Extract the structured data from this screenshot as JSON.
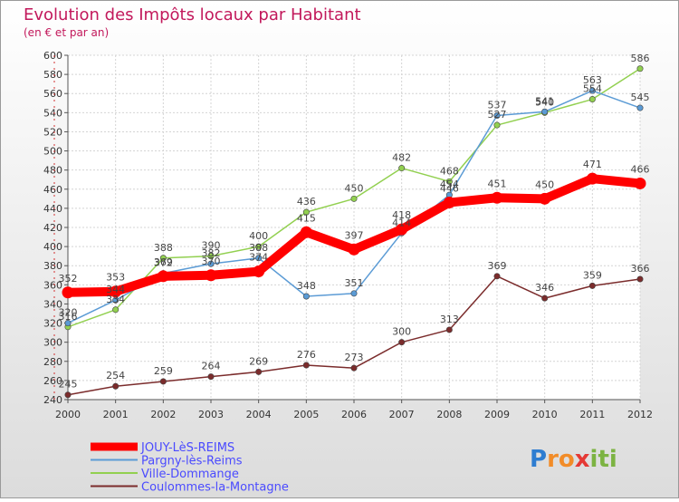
{
  "chart_data": {
    "type": "line",
    "title": "Evolution des Impôts locaux par Habitant",
    "subtitle": "(en € et par an)",
    "x": [
      "2000",
      "2001",
      "2002",
      "2003",
      "2004",
      "2005",
      "2006",
      "2007",
      "2008",
      "2009",
      "2010",
      "2011",
      "2012"
    ],
    "ylim": [
      240,
      600
    ],
    "yticks": [
      240,
      260,
      280,
      300,
      320,
      340,
      360,
      380,
      400,
      420,
      440,
      460,
      480,
      500,
      520,
      540,
      560,
      580,
      600
    ],
    "grid": true,
    "legend_position": "bottom-left",
    "series": [
      {
        "name": "JOUY-LèS-REIMS",
        "color": "#ff0000",
        "values": [
          352,
          353,
          369,
          370,
          374,
          415,
          397,
          418,
          446,
          451,
          450,
          471,
          466
        ]
      },
      {
        "name": "Pargny-lès-Reims",
        "color": "#5b9bd5",
        "values": [
          320,
          344,
          372,
          382,
          388,
          348,
          351,
          414,
          454,
          537,
          541,
          563,
          545
        ]
      },
      {
        "name": "Ville-Dommange",
        "color": "#92d050",
        "values": [
          316,
          334,
          388,
          390,
          400,
          436,
          450,
          482,
          468,
          527,
          540,
          554,
          586
        ]
      },
      {
        "name": "Coulommes-la-Montagne",
        "color": "#7b2c2c",
        "values": [
          245,
          254,
          259,
          264,
          269,
          276,
          273,
          300,
          313,
          369,
          346,
          359,
          366
        ]
      }
    ],
    "watermark": "Proxiti"
  }
}
